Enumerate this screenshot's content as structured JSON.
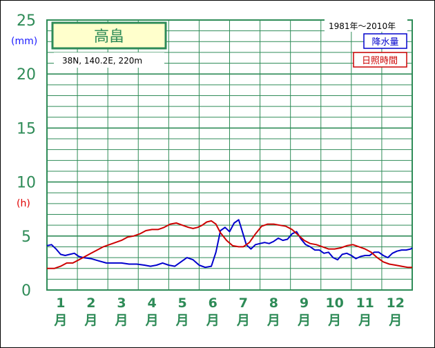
{
  "chart_data": {
    "type": "line",
    "title": "高畠",
    "location": "38N,  140.2E,  220m",
    "period": "1981年〜2010年",
    "y_unit_left_top": "(mm)",
    "y_unit_left_bottom": "(h)",
    "yticks": [
      "0",
      "5",
      "10",
      "15",
      "20",
      "25"
    ],
    "ylim": [
      0,
      25
    ],
    "xlim": [
      0.55,
      12.55
    ],
    "months": [
      "1",
      "2",
      "3",
      "4",
      "5",
      "6",
      "7",
      "8",
      "9",
      "10",
      "11",
      "12"
    ],
    "month_suffix": "月",
    "series": [
      {
        "name": "降水量",
        "color": "#0000cc",
        "x": [
          0.55,
          0.7,
          0.85,
          1.0,
          1.15,
          1.3,
          1.45,
          1.6,
          1.75,
          2.0,
          2.25,
          2.5,
          2.75,
          3.0,
          3.25,
          3.5,
          3.75,
          3.95,
          4.15,
          4.35,
          4.55,
          4.75,
          4.95,
          5.15,
          5.35,
          5.55,
          5.75,
          5.95,
          6.1,
          6.25,
          6.4,
          6.55,
          6.7,
          6.85,
          6.95,
          7.1,
          7.25,
          7.4,
          7.55,
          7.7,
          7.85,
          8.0,
          8.15,
          8.3,
          8.45,
          8.6,
          8.75,
          8.9,
          9.05,
          9.2,
          9.35,
          9.5,
          9.65,
          9.8,
          9.95,
          10.1,
          10.25,
          10.4,
          10.55,
          10.7,
          10.85,
          11.0,
          11.15,
          11.3,
          11.45,
          11.6,
          11.75,
          11.9,
          12.05,
          12.2,
          12.35,
          12.5,
          12.55
        ],
        "y": [
          4.1,
          4.2,
          3.8,
          3.3,
          3.2,
          3.3,
          3.4,
          3.1,
          3.0,
          2.9,
          2.7,
          2.5,
          2.5,
          2.5,
          2.4,
          2.4,
          2.3,
          2.2,
          2.3,
          2.5,
          2.3,
          2.2,
          2.6,
          3.0,
          2.8,
          2.3,
          2.1,
          2.2,
          3.5,
          5.5,
          5.8,
          5.4,
          6.2,
          6.5,
          5.6,
          4.2,
          3.8,
          4.2,
          4.3,
          4.4,
          4.3,
          4.5,
          4.8,
          4.6,
          4.7,
          5.2,
          5.4,
          4.7,
          4.2,
          4.0,
          3.7,
          3.7,
          3.4,
          3.5,
          3.0,
          2.8,
          3.3,
          3.4,
          3.2,
          2.9,
          3.1,
          3.2,
          3.2,
          3.5,
          3.5,
          3.2,
          3.0,
          3.4,
          3.6,
          3.7,
          3.7,
          3.8,
          3.9
        ]
      },
      {
        "name": "日照時間",
        "color": "#cc0000",
        "x": [
          0.55,
          0.8,
          1.0,
          1.2,
          1.4,
          1.6,
          1.8,
          2.0,
          2.2,
          2.4,
          2.6,
          2.8,
          3.0,
          3.2,
          3.4,
          3.6,
          3.8,
          4.0,
          4.2,
          4.4,
          4.6,
          4.8,
          5.0,
          5.2,
          5.35,
          5.5,
          5.65,
          5.8,
          5.95,
          6.1,
          6.25,
          6.45,
          6.65,
          6.85,
          7.0,
          7.2,
          7.4,
          7.6,
          7.8,
          8.0,
          8.2,
          8.4,
          8.6,
          8.8,
          9.0,
          9.2,
          9.4,
          9.6,
          9.8,
          10.0,
          10.2,
          10.4,
          10.6,
          10.8,
          11.0,
          11.2,
          11.4,
          11.6,
          11.8,
          12.0,
          12.2,
          12.4,
          12.55
        ],
        "y": [
          2.0,
          2.0,
          2.2,
          2.5,
          2.5,
          2.8,
          3.1,
          3.4,
          3.7,
          4.0,
          4.2,
          4.4,
          4.6,
          4.9,
          5.0,
          5.2,
          5.5,
          5.6,
          5.6,
          5.8,
          6.1,
          6.2,
          6.0,
          5.8,
          5.7,
          5.8,
          6.0,
          6.3,
          6.4,
          6.1,
          5.3,
          4.6,
          4.1,
          4.0,
          4.0,
          4.4,
          5.2,
          5.9,
          6.1,
          6.1,
          6.0,
          5.9,
          5.6,
          5.1,
          4.6,
          4.3,
          4.2,
          4.0,
          3.8,
          3.8,
          3.9,
          4.1,
          4.2,
          4.0,
          3.8,
          3.5,
          3.0,
          2.6,
          2.4,
          2.3,
          2.2,
          2.1,
          2.1
        ]
      }
    ]
  }
}
